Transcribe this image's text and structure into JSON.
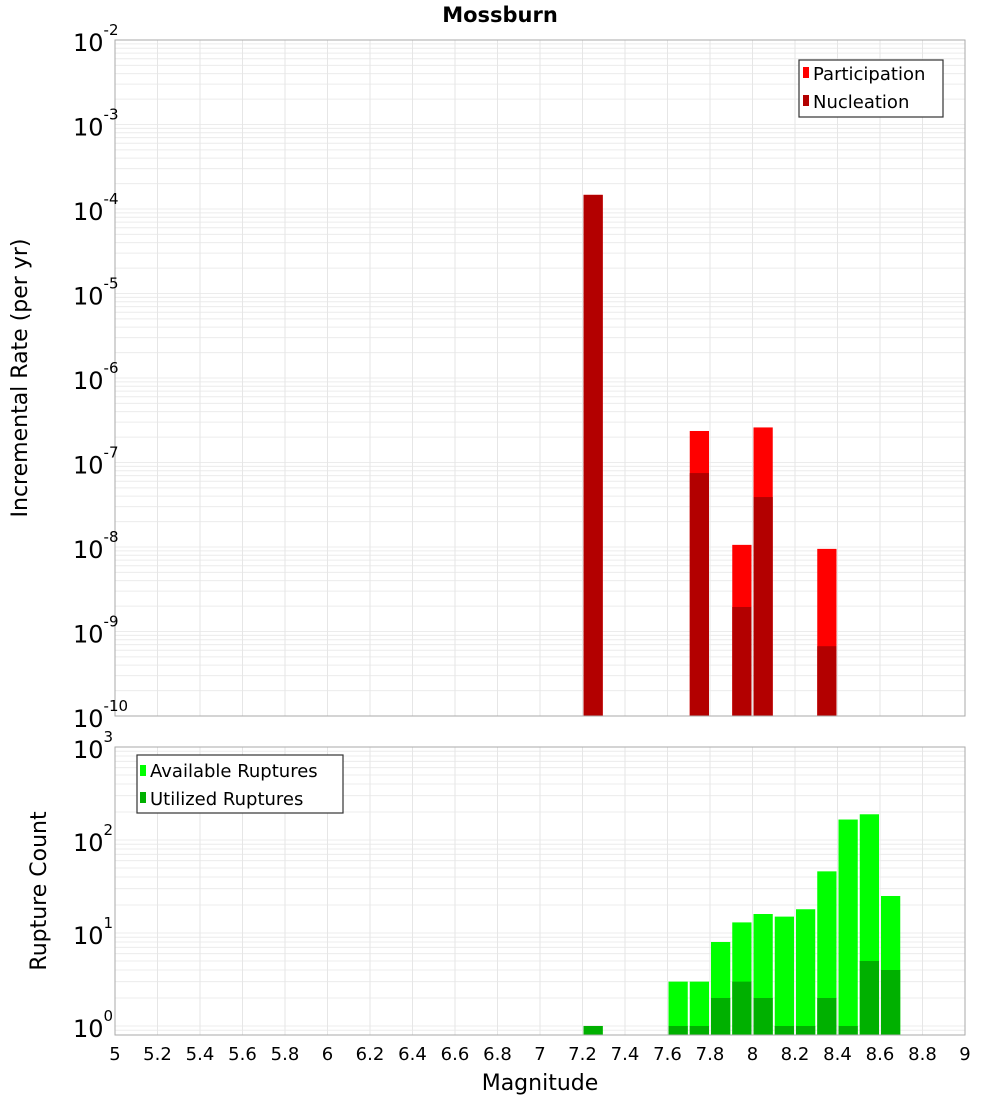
{
  "chart_data": [
    {
      "type": "bar",
      "title": "Mossburn",
      "xlabel": "Magnitude",
      "ylabel": "Incremental Rate (per yr)",
      "yscale": "log",
      "xlim": [
        5,
        9
      ],
      "ylim": [
        1e-10,
        0.01
      ],
      "ytick_exponents": [
        -2,
        -3,
        -4,
        -5,
        -6,
        -7,
        -8,
        -9,
        -10
      ],
      "legend": "top-right",
      "grid": true,
      "x": [
        7.25,
        7.75,
        7.95,
        8.05,
        8.35
      ],
      "series": [
        {
          "name": "Participation",
          "color": "#ff0000",
          "values": [
            0.000147,
            2.36e-07,
            1.06e-08,
            2.6e-07,
            9.5e-09
          ]
        },
        {
          "name": "Nucleation",
          "color": "#b30000",
          "values": [
            0.000147,
            7.5e-08,
            1.95e-09,
            3.9e-08,
            6.7e-10
          ]
        }
      ]
    },
    {
      "type": "bar",
      "title": "",
      "xlabel": "Magnitude",
      "ylabel": "Rupture Count",
      "yscale": "log",
      "xlim": [
        5,
        9
      ],
      "ylim": [
        0.8,
        1000
      ],
      "ytick_exponents": [
        3,
        2,
        1,
        0
      ],
      "legend": "top-left",
      "grid": true,
      "x": [
        7.25,
        7.65,
        7.75,
        7.85,
        7.95,
        8.05,
        8.15,
        8.25,
        8.35,
        8.45,
        8.55,
        8.65
      ],
      "series": [
        {
          "name": "Available Ruptures",
          "color": "#00ff00",
          "values": [
            1,
            3,
            3,
            8,
            13,
            16,
            15,
            18,
            46,
            166,
            189,
            25
          ]
        },
        {
          "name": "Utilized Ruptures",
          "color": "#00b000",
          "values": [
            1,
            1,
            1,
            2,
            3,
            2,
            1,
            1,
            2,
            1,
            5,
            4
          ]
        }
      ]
    }
  ],
  "xticks": [
    "5",
    "5.2",
    "5.4",
    "5.6",
    "5.8",
    "6",
    "6.2",
    "6.4",
    "6.6",
    "6.8",
    "7",
    "7.2",
    "7.4",
    "7.6",
    "7.8",
    "8",
    "8.2",
    "8.4",
    "8.6",
    "8.8",
    "9"
  ],
  "tick_base": "10"
}
